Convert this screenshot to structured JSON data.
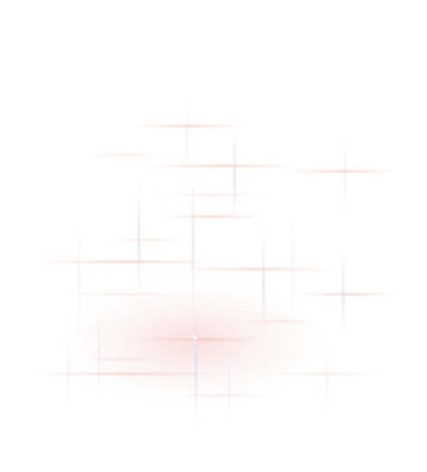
{
  "scene": {
    "description_colors": {
      "background": "#ffffff",
      "glow": "#f6c4c4",
      "horizontal_light": "#f6beaf",
      "vertical_light": "#d6daec"
    }
  }
}
